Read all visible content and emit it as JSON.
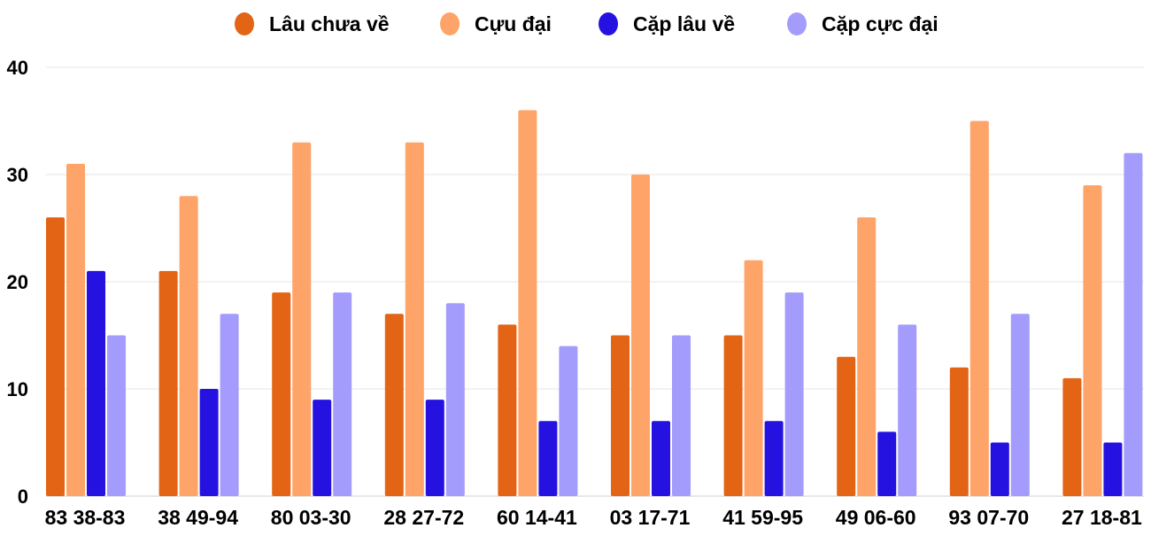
{
  "chart_data": {
    "type": "bar",
    "categories": [
      "83 38-83",
      "38 49-94",
      "80 03-30",
      "28 27-72",
      "60 14-41",
      "03 17-71",
      "41 59-95",
      "49 06-60",
      "93 07-70",
      "27 18-81"
    ],
    "series": [
      {
        "name": "Lâu chưa về",
        "color": "#e26414",
        "values": [
          26,
          21,
          19,
          17,
          16,
          15,
          15,
          13,
          12,
          11
        ]
      },
      {
        "name": "Cựu đại",
        "color": "#ffa468",
        "values": [
          31,
          28,
          33,
          33,
          36,
          30,
          22,
          26,
          35,
          29
        ]
      },
      {
        "name": "Cặp lâu về",
        "color": "#2512e0",
        "values": [
          21,
          10,
          9,
          9,
          7,
          7,
          7,
          6,
          5,
          5
        ]
      },
      {
        "name": "Cặp cực đại",
        "color": "#a39cfc",
        "values": [
          15,
          17,
          19,
          18,
          14,
          15,
          19,
          16,
          17,
          32
        ]
      }
    ],
    "yticks": [
      "0",
      "10",
      "20",
      "30",
      "40"
    ],
    "ylim": [
      0,
      40
    ],
    "grid": true,
    "legend": "top-center",
    "title": "",
    "xlabel": "",
    "ylabel": ""
  }
}
